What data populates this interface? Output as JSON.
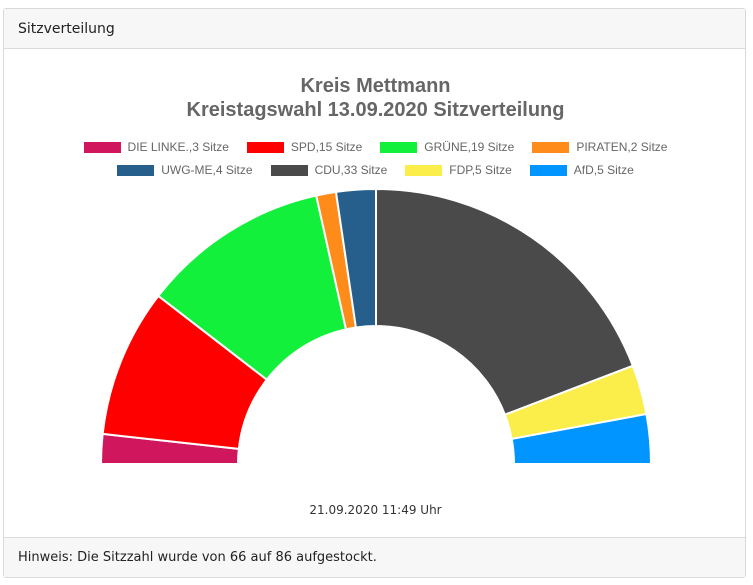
{
  "panel": {
    "title": "Sitzverteilung",
    "footnote": "Hinweis: Die Sitzzahl wurde von 66 auf 86 aufgestockt."
  },
  "chart_data": {
    "type": "pie",
    "variant": "half-donut",
    "title": "Kreis Mettmann",
    "subtitle": "Kreistagswahl 13.09.2020 Sitzverteilung",
    "legend": "top",
    "series": [
      {
        "name": "DIE LINKE.",
        "value": 3,
        "label": "DIE LINKE.,3 Sitze",
        "color": "#d0175e"
      },
      {
        "name": "SPD",
        "value": 15,
        "label": "SPD,15 Sitze",
        "color": "#ff0000"
      },
      {
        "name": "GRÜNE",
        "value": 19,
        "label": "GRÜNE,19 Sitze",
        "color": "#12f03c"
      },
      {
        "name": "PIRATEN",
        "value": 2,
        "label": "PIRATEN,2 Sitze",
        "color": "#ff8c1a"
      },
      {
        "name": "UWG-ME",
        "value": 4,
        "label": "UWG-ME,4 Sitze",
        "color": "#265f8c"
      },
      {
        "name": "CDU",
        "value": 33,
        "label": "CDU,33 Sitze",
        "color": "#4a4a4a"
      },
      {
        "name": "FDP",
        "value": 5,
        "label": "FDP,5 Sitze",
        "color": "#fbed4a"
      },
      {
        "name": "AfD",
        "value": 5,
        "label": "AfD,5 Sitze",
        "color": "#0095ff"
      }
    ],
    "total": 86
  },
  "timestamp": "21.09.2020 11:49 Uhr"
}
